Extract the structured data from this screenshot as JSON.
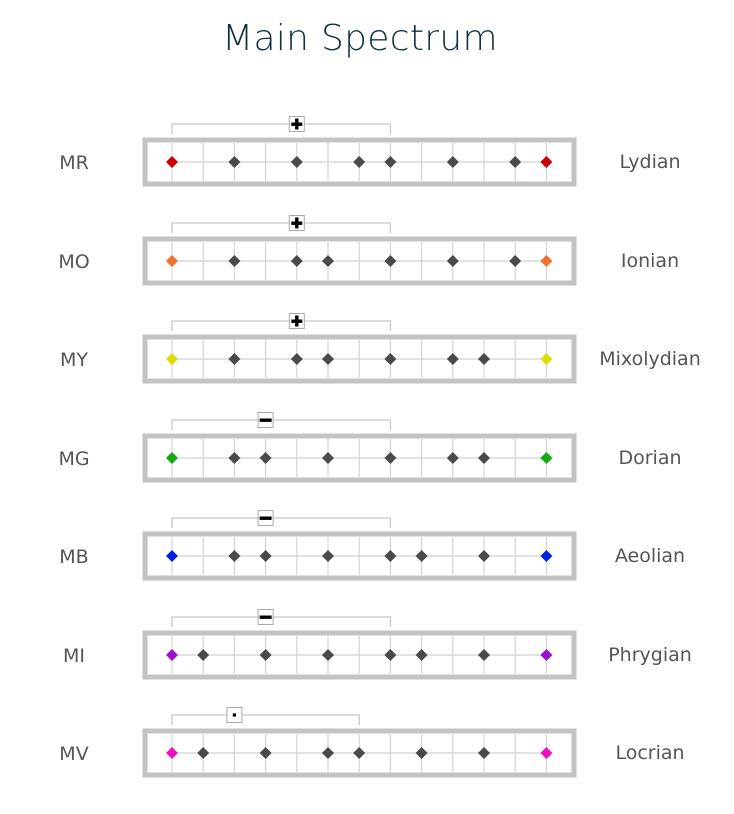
{
  "title": "Main Spectrum",
  "spectrum": {
    "positions": 13,
    "cells": 12,
    "rows": [
      {
        "code": "MR",
        "mode": "Lydian",
        "color": "#cc0000",
        "notes": [
          0,
          2,
          4,
          6,
          7,
          9,
          11,
          12
        ],
        "bracket": [
          0,
          7
        ],
        "sign": "plus"
      },
      {
        "code": "MO",
        "mode": "Ionian",
        "color": "#f07030",
        "notes": [
          0,
          2,
          4,
          5,
          7,
          9,
          11,
          12
        ],
        "bracket": [
          0,
          7
        ],
        "sign": "plus"
      },
      {
        "code": "MY",
        "mode": "Mixolydian",
        "color": "#dddd00",
        "notes": [
          0,
          2,
          4,
          5,
          7,
          9,
          10,
          12
        ],
        "bracket": [
          0,
          7
        ],
        "sign": "plus"
      },
      {
        "code": "MG",
        "mode": "Dorian",
        "color": "#11aa11",
        "notes": [
          0,
          2,
          3,
          5,
          7,
          9,
          10,
          12
        ],
        "bracket": [
          0,
          7
        ],
        "sign": "minus"
      },
      {
        "code": "MB",
        "mode": "Aeolian",
        "color": "#0022dd",
        "notes": [
          0,
          2,
          3,
          5,
          7,
          8,
          10,
          12
        ],
        "bracket": [
          0,
          7
        ],
        "sign": "minus"
      },
      {
        "code": "MI",
        "mode": "Phrygian",
        "color": "#9911cc",
        "notes": [
          0,
          1,
          3,
          5,
          7,
          8,
          10,
          12
        ],
        "bracket": [
          0,
          7
        ],
        "sign": "minus"
      },
      {
        "code": "MV",
        "mode": "Locrian",
        "color": "#ee11bb",
        "notes": [
          0,
          1,
          3,
          5,
          6,
          8,
          10,
          12
        ],
        "bracket": [
          0,
          6
        ],
        "sign": "dot"
      }
    ]
  }
}
